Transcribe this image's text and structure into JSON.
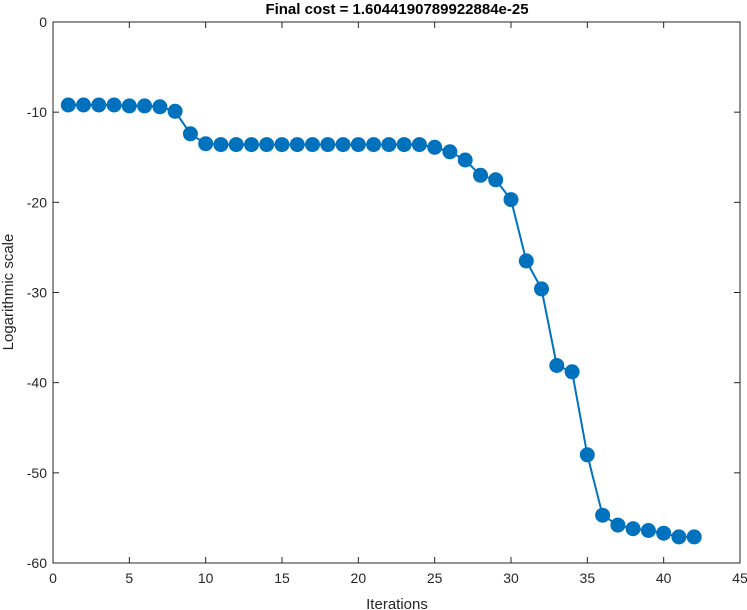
{
  "chart_data": {
    "type": "line",
    "title": "Final cost = 1.6044190789922884e-25",
    "xlabel": "Iterations",
    "ylabel": "Logarithmic scale",
    "xlim": [
      0,
      45
    ],
    "ylim": [
      -60,
      0
    ],
    "xticks": [
      0,
      5,
      10,
      15,
      20,
      25,
      30,
      35,
      40,
      45
    ],
    "yticks": [
      0,
      -10,
      -20,
      -30,
      -40,
      -50,
      -60
    ],
    "grid": false,
    "box": true,
    "series_color": "#0072bd",
    "marker": "filled-circle",
    "x": [
      1,
      2,
      3,
      4,
      5,
      6,
      7,
      8,
      9,
      10,
      11,
      12,
      13,
      14,
      15,
      16,
      17,
      18,
      19,
      20,
      21,
      22,
      23,
      24,
      25,
      26,
      27,
      28,
      29,
      30,
      31,
      32,
      33,
      34,
      35,
      36,
      37,
      38,
      39,
      40,
      41,
      42
    ],
    "y": [
      -9.2,
      -9.2,
      -9.2,
      -9.2,
      -9.3,
      -9.3,
      -9.4,
      -9.9,
      -12.4,
      -13.5,
      -13.6,
      -13.6,
      -13.6,
      -13.6,
      -13.6,
      -13.6,
      -13.6,
      -13.6,
      -13.6,
      -13.6,
      -13.6,
      -13.6,
      -13.6,
      -13.6,
      -13.9,
      -14.4,
      -15.3,
      -17.0,
      -17.5,
      -19.7,
      -26.5,
      -29.6,
      -38.1,
      -38.8,
      -48.0,
      -54.7,
      -55.8,
      -56.2,
      -56.4,
      -56.7,
      -57.1,
      -57.1
    ]
  }
}
